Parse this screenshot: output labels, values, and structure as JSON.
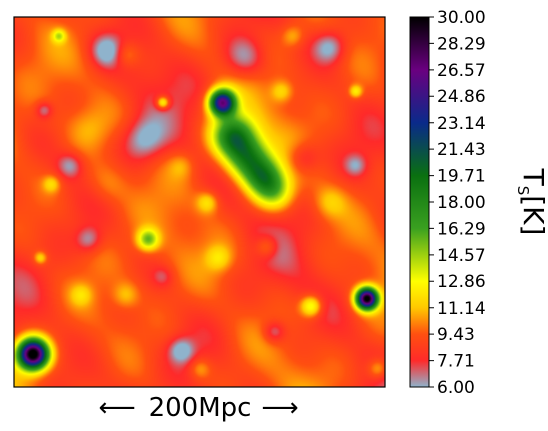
{
  "chart_data": {
    "type": "heatmap",
    "title": "",
    "xlabel": "",
    "ylabel": "",
    "scale_bar": {
      "left_arrow": "⟵",
      "label": "200Mpc",
      "right_arrow": "⟶"
    },
    "colorbar": {
      "label_main": "T",
      "label_sub": "S",
      "label_unit": "[K]",
      "range": [
        6.0,
        30.0
      ],
      "ticks": [
        "30.00",
        "28.29",
        "26.57",
        "24.86",
        "23.14",
        "21.43",
        "19.71",
        "18.00",
        "16.29",
        "14.57",
        "12.86",
        "11.14",
        "9.43",
        "7.71",
        "6.00"
      ],
      "tick_values": [
        30.0,
        28.29,
        26.57,
        24.86,
        23.14,
        21.43,
        19.71,
        18.0,
        16.29,
        14.57,
        12.86,
        11.14,
        9.43,
        7.71,
        6.0
      ],
      "colors": [
        "#8fb3cc",
        "#ff2a2a",
        "#ff5010",
        "#ffc800",
        "#ffff00",
        "#3aa020",
        "#0a7010",
        "#0a2a8a",
        "#6a0080",
        "#000000"
      ],
      "color_stops": [
        6.0,
        7.71,
        9.43,
        11.14,
        12.86,
        16.29,
        19.71,
        23.14,
        26.57,
        30.0
      ]
    },
    "background_value": 9.0,
    "features": [
      {
        "x": 0.56,
        "y": 0.77,
        "amp": 17,
        "s": 0.012
      },
      {
        "x": 0.59,
        "y": 0.68,
        "amp": 10,
        "s": 0.02
      },
      {
        "x": 0.63,
        "y": 0.62,
        "amp": 8,
        "s": 0.02
      },
      {
        "x": 0.67,
        "y": 0.57,
        "amp": 7,
        "s": 0.018
      },
      {
        "x": 0.7,
        "y": 0.53,
        "amp": 5,
        "s": 0.018
      },
      {
        "x": 0.05,
        "y": 0.09,
        "amp": 22,
        "s": 0.014
      },
      {
        "x": 0.95,
        "y": 0.24,
        "amp": 21,
        "s": 0.01
      },
      {
        "x": 0.8,
        "y": 0.22,
        "amp": 5,
        "s": 0.01
      },
      {
        "x": 0.4,
        "y": 0.77,
        "amp": 5,
        "s": 0.006
      },
      {
        "x": 0.36,
        "y": 0.4,
        "amp": 6,
        "s": 0.01
      },
      {
        "x": 0.52,
        "y": 0.5,
        "amp": 3,
        "s": 0.01
      },
      {
        "x": 0.12,
        "y": 0.95,
        "amp": 4,
        "s": 0.006
      },
      {
        "x": 0.07,
        "y": 0.35,
        "amp": 3,
        "s": 0.006
      },
      {
        "x": 0.1,
        "y": 0.55,
        "amp": 2.5,
        "s": 0.008
      },
      {
        "x": 0.92,
        "y": 0.8,
        "amp": 3.5,
        "s": 0.006
      },
      {
        "x": 0.72,
        "y": 0.8,
        "amp": 2.5,
        "s": 0.01
      },
      {
        "x": 0.55,
        "y": 0.35,
        "amp": 2.5,
        "s": 0.012
      },
      {
        "x": 0.68,
        "y": 0.38,
        "amp": 2.5,
        "s": 0.01
      },
      {
        "x": 0.3,
        "y": 0.25,
        "amp": 2.0,
        "s": 0.012
      },
      {
        "x": 0.18,
        "y": 0.25,
        "amp": 2.0,
        "s": 0.01
      },
      {
        "x": 0.85,
        "y": 0.5,
        "amp": 2.0,
        "s": 0.015
      },
      {
        "x": 0.98,
        "y": 0.05,
        "amp": 3.0,
        "s": 0.01
      },
      {
        "x": 0.5,
        "y": 0.05,
        "amp": 2.0,
        "s": 0.01
      },
      {
        "x": 0.2,
        "y": 0.7,
        "amp": 1.5,
        "s": 0.02
      },
      {
        "x": 0.25,
        "y": 0.55,
        "amp": 1.5,
        "s": 0.02
      },
      {
        "x": 0.45,
        "y": 0.6,
        "amp": 1.5,
        "s": 0.012
      },
      {
        "x": 0.3,
        "y": 0.9,
        "amp": 2.0,
        "s": 0.012
      },
      {
        "x": 0.75,
        "y": 0.95,
        "amp": 2.0,
        "s": 0.01
      },
      {
        "x": 0.25,
        "y": 0.91,
        "amp": -3.0,
        "s": 0.015
      },
      {
        "x": 0.62,
        "y": 0.89,
        "amp": -3.0,
        "s": 0.02
      },
      {
        "x": 0.85,
        "y": 0.92,
        "amp": -3.0,
        "s": 0.015
      },
      {
        "x": 0.35,
        "y": 0.67,
        "amp": -3.0,
        "s": 0.02
      },
      {
        "x": 0.15,
        "y": 0.6,
        "amp": -2.5,
        "s": 0.012
      },
      {
        "x": 0.2,
        "y": 0.4,
        "amp": -2.5,
        "s": 0.012
      },
      {
        "x": 0.78,
        "y": 0.62,
        "amp": -2.5,
        "s": 0.015
      },
      {
        "x": 0.08,
        "y": 0.75,
        "amp": -2.5,
        "s": 0.008
      },
      {
        "x": 0.45,
        "y": 0.1,
        "amp": -3.0,
        "s": 0.012
      },
      {
        "x": 0.7,
        "y": 0.15,
        "amp": -2.5,
        "s": 0.01
      },
      {
        "x": 0.92,
        "y": 0.6,
        "amp": -2.0,
        "s": 0.01
      },
      {
        "x": 0.4,
        "y": 0.3,
        "amp": -1.5,
        "s": 0.01
      }
    ]
  }
}
